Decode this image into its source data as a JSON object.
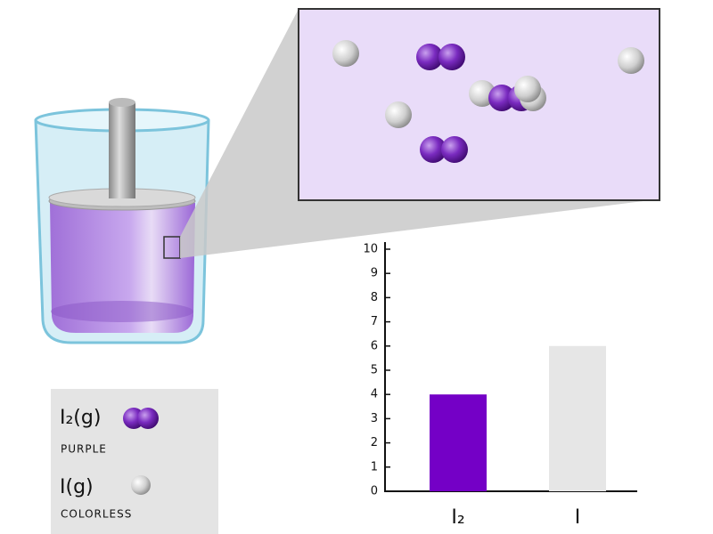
{
  "legend": [
    {
      "formula": "I₂(g)",
      "note": "PURPLE"
    },
    {
      "formula": "I(g)",
      "note": "COLORLESS"
    }
  ],
  "chart_data": {
    "type": "bar",
    "categories": [
      "I₂",
      "I"
    ],
    "values": [
      4,
      6
    ],
    "colors": [
      "#7400c6",
      "#e6e6e6"
    ],
    "ylim": [
      0,
      10
    ],
    "yticks": [
      0,
      1,
      2,
      3,
      4,
      5,
      6,
      7,
      8,
      9,
      10
    ],
    "grid": false
  }
}
